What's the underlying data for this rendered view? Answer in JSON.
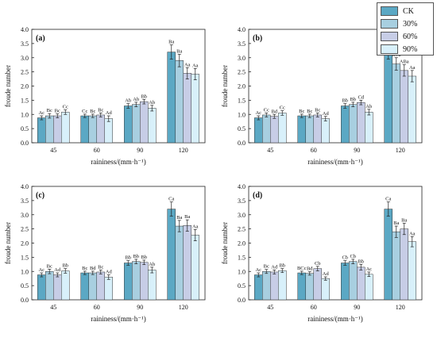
{
  "legend": [
    {
      "name": "CK",
      "color": "#5ba8c4"
    },
    {
      "name": "30%",
      "color": "#a8cfe0"
    },
    {
      "name": "60%",
      "color": "#c7cde6"
    },
    {
      "name": "90%",
      "color": "#d8f0fa"
    }
  ],
  "chart_data": [
    {
      "type": "bar",
      "panel_label": "(a)",
      "xlabel": "raininess/(mm·h⁻¹)",
      "ylabel": "froude number",
      "categories": [
        "45",
        "60",
        "90",
        "120"
      ],
      "ylim": [
        0,
        4.0
      ],
      "yticks": [
        "0.0",
        "0.5",
        "1.0",
        "1.5",
        "2.0",
        "2.5",
        "3.0",
        "3.5",
        "4.0"
      ],
      "series": [
        {
          "name": "CK",
          "values": [
            0.88,
            0.95,
            1.3,
            3.2
          ],
          "errors": [
            0.07,
            0.06,
            0.08,
            0.25
          ],
          "labels": [
            "Ac",
            "Cc",
            "Ab",
            "Ba"
          ]
        },
        {
          "name": "30%",
          "values": [
            0.95,
            0.95,
            1.35,
            2.9
          ],
          "errors": [
            0.08,
            0.06,
            0.08,
            0.22
          ],
          "labels": [
            "Bc",
            "Bc",
            "Ab",
            "Ba"
          ]
        },
        {
          "name": "60%",
          "values": [
            0.95,
            0.98,
            1.45,
            2.45
          ],
          "errors": [
            0.07,
            0.07,
            0.08,
            0.2
          ],
          "labels": [
            "Bc",
            "Bc",
            "Bb",
            "Aa"
          ]
        },
        {
          "name": "90%",
          "values": [
            1.08,
            0.85,
            1.22,
            2.42
          ],
          "errors": [
            0.08,
            0.1,
            0.1,
            0.2
          ],
          "labels": [
            "Cc",
            "Ad",
            "Ab",
            "Aa"
          ]
        }
      ]
    },
    {
      "type": "bar",
      "panel_label": "(b)",
      "xlabel": "raininess/(mm·h⁻¹)",
      "ylabel": "froude number",
      "categories": [
        "45",
        "60",
        "90",
        "120"
      ],
      "ylim": [
        0,
        4.0
      ],
      "yticks": [
        "0.0",
        "0.5",
        "1.0",
        "1.5",
        "2.0",
        "2.5",
        "3.0",
        "3.5",
        "4.0"
      ],
      "series": [
        {
          "name": "CK",
          "values": [
            0.88,
            0.95,
            1.3,
            3.2
          ],
          "errors": [
            0.07,
            0.06,
            0.08,
            0.25
          ],
          "labels": [
            "Ac",
            "Bc",
            "Bb",
            "Ca"
          ]
        },
        {
          "name": "30%",
          "values": [
            0.98,
            0.95,
            1.35,
            2.78
          ],
          "errors": [
            0.07,
            0.06,
            0.08,
            0.22
          ],
          "labels": [
            "Cc",
            "Bc",
            "Bb",
            "BCa"
          ]
        },
        {
          "name": "60%",
          "values": [
            0.93,
            0.98,
            1.42,
            2.55
          ],
          "errors": [
            0.07,
            0.07,
            0.08,
            0.2
          ],
          "labels": [
            "Bd",
            "Bc",
            "Cd",
            "ABa"
          ]
        },
        {
          "name": "90%",
          "values": [
            1.05,
            0.85,
            1.08,
            2.35
          ],
          "errors": [
            0.08,
            0.08,
            0.1,
            0.2
          ],
          "labels": [
            "Cc",
            "Ad",
            "Ab",
            "Aa"
          ]
        }
      ]
    },
    {
      "type": "bar",
      "panel_label": "(c)",
      "xlabel": "raininess/(mm·h⁻¹)",
      "ylabel": "froude number",
      "categories": [
        "45",
        "60",
        "90",
        "120"
      ],
      "ylim": [
        0,
        4.0
      ],
      "yticks": [
        "0.0",
        "0.5",
        "1.0",
        "1.5",
        "2.0",
        "2.5",
        "3.0",
        "3.5",
        "4.0"
      ],
      "series": [
        {
          "name": "CK",
          "values": [
            0.88,
            0.95,
            1.3,
            3.2
          ],
          "errors": [
            0.07,
            0.06,
            0.08,
            0.25
          ],
          "labels": [
            "Ac",
            "Bc",
            "Bb",
            "Ca"
          ]
        },
        {
          "name": "30%",
          "values": [
            1.0,
            0.95,
            1.35,
            2.6
          ],
          "errors": [
            0.08,
            0.06,
            0.08,
            0.2
          ],
          "labels": [
            "Bc",
            "Bd",
            "Bb",
            "Ba"
          ]
        },
        {
          "name": "60%",
          "values": [
            0.88,
            0.98,
            1.32,
            2.62
          ],
          "errors": [
            0.07,
            0.07,
            0.08,
            0.2
          ],
          "labels": [
            "Ad",
            "Bc",
            "Bb",
            "Ba"
          ]
        },
        {
          "name": "90%",
          "values": [
            1.02,
            0.8,
            1.05,
            2.28
          ],
          "errors": [
            0.08,
            0.08,
            0.1,
            0.2
          ],
          "labels": [
            "Bb",
            "Ad",
            "Ab",
            "Aa"
          ]
        }
      ]
    },
    {
      "type": "bar",
      "panel_label": "(d)",
      "xlabel": "raininess/(mm·h⁻¹)",
      "ylabel": "froude number",
      "categories": [
        "45",
        "60",
        "90",
        "120"
      ],
      "ylim": [
        0,
        4.0
      ],
      "yticks": [
        "0.0",
        "0.5",
        "1.0",
        "1.5",
        "2.0",
        "2.5",
        "3.0",
        "3.5",
        "4.0"
      ],
      "series": [
        {
          "name": "CK",
          "values": [
            0.88,
            0.95,
            1.3,
            3.2
          ],
          "errors": [
            0.07,
            0.06,
            0.08,
            0.25
          ],
          "labels": [
            "Ac",
            "BCc",
            "Cb",
            "Ca"
          ]
        },
        {
          "name": "30%",
          "values": [
            1.0,
            0.93,
            1.35,
            2.4
          ],
          "errors": [
            0.07,
            0.06,
            0.08,
            0.2
          ],
          "labels": [
            "Bc",
            "Bd",
            "Cb",
            "Ba"
          ]
        },
        {
          "name": "60%",
          "values": [
            0.98,
            1.1,
            1.15,
            2.5
          ],
          "errors": [
            0.07,
            0.08,
            0.1,
            0.2
          ],
          "labels": [
            "Ad",
            "Cb",
            "Bb",
            "Ba"
          ]
        },
        {
          "name": "90%",
          "values": [
            1.03,
            0.75,
            0.9,
            2.05
          ],
          "errors": [
            0.07,
            0.06,
            0.08,
            0.18
          ],
          "labels": [
            "Bb",
            "Ad",
            "Ac",
            "Aa"
          ]
        }
      ]
    }
  ]
}
